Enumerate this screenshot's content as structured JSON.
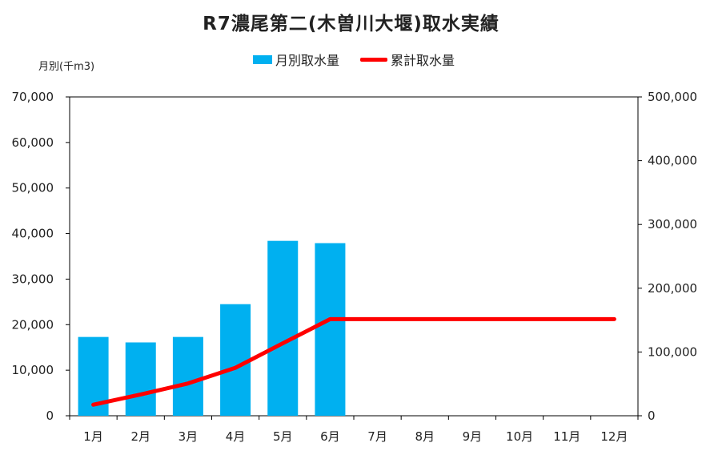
{
  "chart_data": {
    "type": "bar",
    "title": "R7濃尾第二(木曽川大堰)取水実績",
    "ylabel": "月別(千m3)",
    "categories": [
      "1月",
      "2月",
      "3月",
      "4月",
      "5月",
      "6月",
      "7月",
      "8月",
      "9月",
      "10月",
      "11月",
      "12月"
    ],
    "ylim": [
      0,
      70000
    ],
    "y2lim": [
      0,
      500000
    ],
    "yticks": [
      "0",
      "10,000",
      "20,000",
      "30,000",
      "40,000",
      "50,000",
      "60,000",
      "70,000"
    ],
    "y2ticks": [
      "0",
      "100,000",
      "200,000",
      "300,000",
      "400,000",
      "500,000"
    ],
    "series": [
      {
        "name": "月別取水量",
        "type": "bar",
        "axis": "left",
        "color": "#00b0f0",
        "values": [
          17300,
          16100,
          17300,
          24500,
          38400,
          37900,
          null,
          null,
          null,
          null,
          null,
          null
        ]
      },
      {
        "name": "累計取水量",
        "type": "line",
        "axis": "right",
        "color": "#ff0000",
        "values": [
          17300,
          33400,
          50700,
          75200,
          113600,
          151500,
          151500,
          151500,
          151500,
          151500,
          151500,
          151500
        ]
      }
    ],
    "legend_position": "top-center",
    "grid": false
  }
}
